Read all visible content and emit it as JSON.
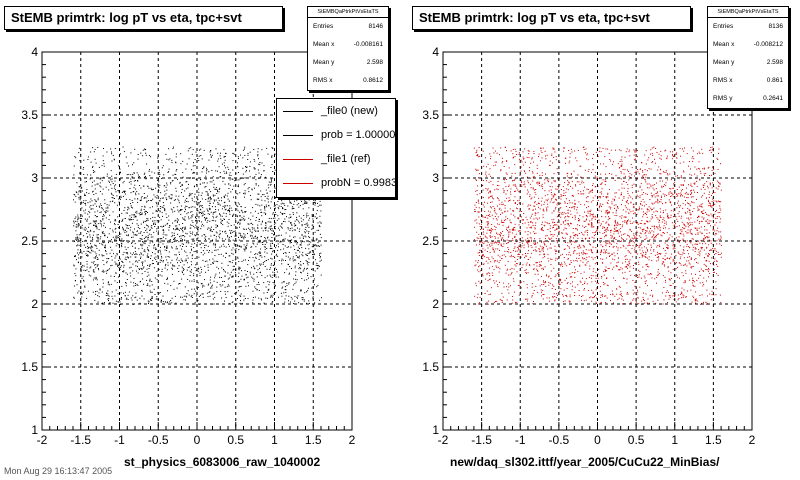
{
  "canvas": {
    "left": {
      "title": "StEMB primtrk: log pT vs eta, tpc+svt",
      "xtitle": "st_physics_6083006_raw_1040002",
      "stats": {
        "name": "StEMBQaPtrkPtVsEtaTS",
        "rows": [
          {
            "label": "Entries",
            "value": "8146"
          },
          {
            "label": "Mean x",
            "value": "-0.008161"
          },
          {
            "label": "Mean y",
            "value": "2.598"
          },
          {
            "label": "RMS x",
            "value": "0.8612"
          }
        ]
      },
      "legend": [
        {
          "label": "_file0 (new)",
          "color": "#000000"
        },
        {
          "label": "prob = 1.000000",
          "color": "#000000"
        },
        {
          "label": "_file1 (ref)",
          "color": "#cc0000"
        },
        {
          "label": "probN = 0.998384",
          "color": "#cc0000"
        }
      ]
    },
    "right": {
      "title": "StEMB primtrk: log pT vs eta, tpc+svt",
      "xtitle": "new/daq_sl302.ittf/year_2005/CuCu22_MinBias/",
      "stats": {
        "name": "StEMBQaPtrkPtVsEtaTS",
        "rows": [
          {
            "label": "Entries",
            "value": "8136"
          },
          {
            "label": "Mean x",
            "value": "-0.008212"
          },
          {
            "label": "Mean y",
            "value": "2.598"
          },
          {
            "label": "RMS x",
            "value": "0.861"
          },
          {
            "label": "RMS y",
            "value": "0.2641"
          }
        ]
      }
    },
    "footer": "Mon Aug 29 16:13:47 2005"
  },
  "chart_data": [
    {
      "type": "scatter",
      "title": "StEMB primtrk: log pT vs eta, tpc+svt",
      "xlabel": "st_physics_6083006_raw_1040002",
      "ylabel": "",
      "xlim": [
        -2,
        2
      ],
      "ylim": [
        1,
        4
      ],
      "xticks": [
        "-2",
        "-1.5",
        "-1",
        "-0.5",
        "0",
        "0.5",
        "1",
        "1.5",
        "2"
      ],
      "yticks": [
        "1",
        "1.5",
        "2",
        "2.5",
        "3",
        "3.5",
        "4"
      ],
      "grid": true,
      "marker_color": "#000000",
      "entries": 8146,
      "mean_x": -0.008161,
      "mean_y": 2.598,
      "rms_x": 0.8612,
      "x_extent": [
        -1.6,
        1.6
      ],
      "y_extent": [
        2.0,
        3.25
      ],
      "points": [
        [
          -1.2,
          2.55
        ],
        [
          -0.8,
          2.7
        ],
        [
          -0.4,
          2.45
        ],
        [
          0.0,
          2.6
        ],
        [
          0.4,
          2.75
        ],
        [
          0.8,
          2.5
        ],
        [
          1.2,
          2.65
        ],
        [
          -1.5,
          2.3
        ],
        [
          1.5,
          2.4
        ],
        [
          -0.2,
          2.95
        ],
        [
          0.6,
          2.2
        ],
        [
          -1.0,
          3.05
        ],
        [
          1.0,
          2.85
        ]
      ]
    },
    {
      "type": "scatter",
      "title": "StEMB primtrk: log pT vs eta, tpc+svt",
      "xlabel": "new/daq_sl302.ittf/year_2005/CuCu22_MinBias/",
      "ylabel": "",
      "xlim": [
        -2,
        2
      ],
      "ylim": [
        1,
        4
      ],
      "xticks": [
        "-2",
        "-1.5",
        "-1",
        "-0.5",
        "0",
        "0.5",
        "1",
        "1.5",
        "2"
      ],
      "yticks": [
        "1",
        "1.5",
        "2",
        "2.5",
        "3",
        "3.5",
        "4"
      ],
      "grid": true,
      "marker_color": "#cc0000",
      "entries": 8136,
      "mean_x": -0.008212,
      "mean_y": 2.598,
      "rms_x": 0.861,
      "rms_y": 0.2641,
      "x_extent": [
        -1.6,
        1.6
      ],
      "y_extent": [
        2.0,
        3.25
      ],
      "points": [
        [
          -1.1,
          2.6
        ],
        [
          -0.7,
          2.4
        ],
        [
          -0.3,
          2.8
        ],
        [
          0.1,
          2.55
        ],
        [
          0.5,
          2.65
        ],
        [
          0.9,
          2.45
        ],
        [
          1.3,
          2.7
        ],
        [
          -1.4,
          2.9
        ],
        [
          1.4,
          2.35
        ],
        [
          -0.5,
          2.2
        ],
        [
          0.3,
          3.1
        ],
        [
          -0.9,
          2.5
        ],
        [
          1.1,
          2.95
        ]
      ]
    }
  ]
}
